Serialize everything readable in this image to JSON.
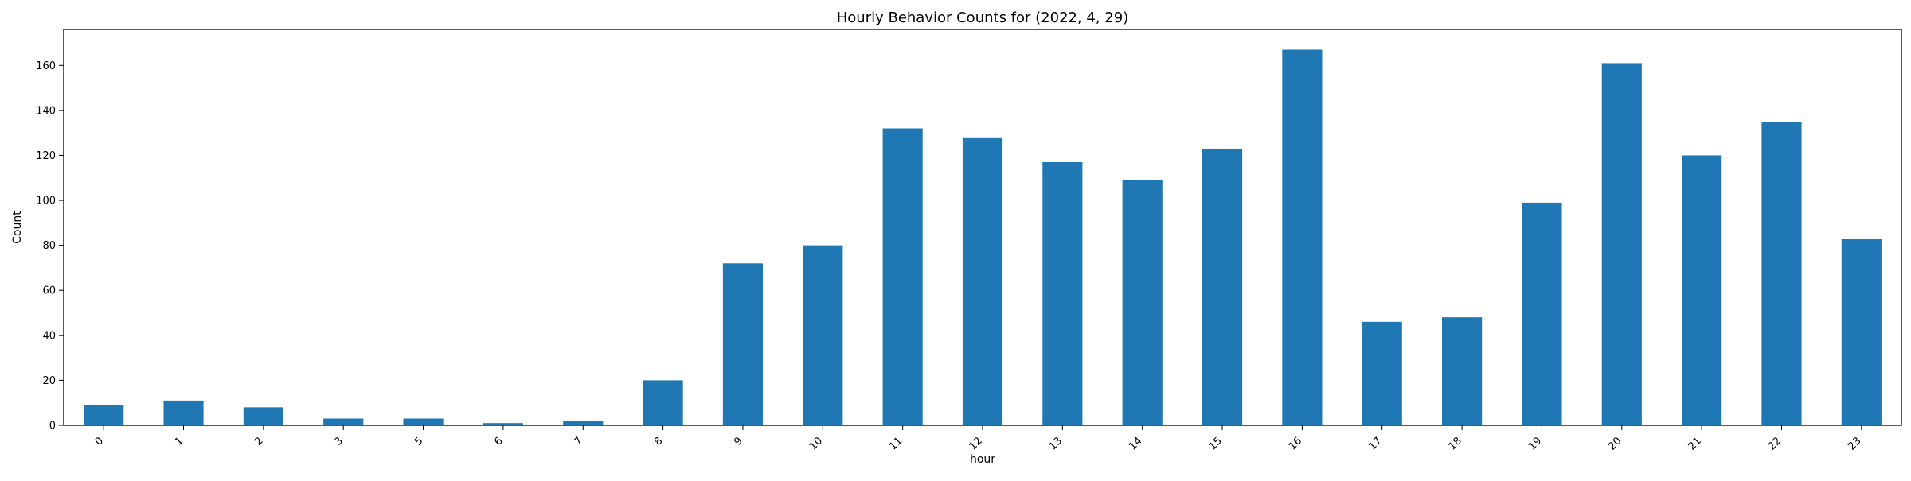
{
  "chart_data": {
    "type": "bar",
    "title": "Hourly Behavior Counts for (2022, 4, 29)",
    "xlabel": "hour",
    "ylabel": "Count",
    "categories": [
      "0",
      "1",
      "2",
      "3",
      "5",
      "6",
      "7",
      "8",
      "9",
      "10",
      "11",
      "12",
      "13",
      "14",
      "15",
      "16",
      "17",
      "18",
      "19",
      "20",
      "21",
      "22",
      "23"
    ],
    "values": [
      9,
      11,
      8,
      3,
      3,
      1,
      2,
      20,
      72,
      80,
      132,
      128,
      117,
      109,
      123,
      167,
      46,
      48,
      99,
      161,
      120,
      135,
      83
    ],
    "ylim": [
      0,
      176
    ],
    "yticks": [
      0,
      20,
      40,
      60,
      80,
      100,
      120,
      140,
      160
    ],
    "grid": false,
    "legend": "none",
    "bar_color": "#1f77b4"
  }
}
